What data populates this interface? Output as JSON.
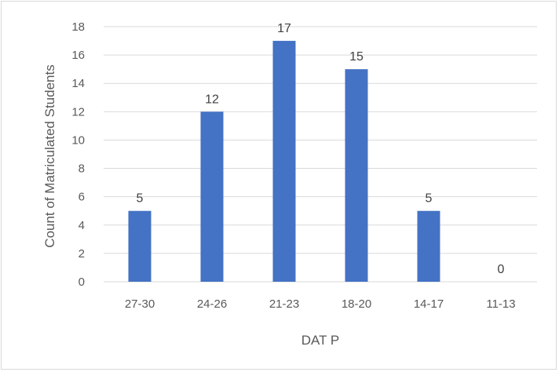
{
  "chart_data": {
    "type": "bar",
    "title": "",
    "xlabel": "DAT P",
    "ylabel": "Count of Matriculated Students",
    "categories": [
      "27-30",
      "24-26",
      "21-23",
      "18-20",
      "14-17",
      "11-13"
    ],
    "values": [
      5,
      12,
      17,
      15,
      5,
      0
    ],
    "data_labels": [
      "5",
      "12",
      "17",
      "15",
      "5",
      "0"
    ],
    "ylim": [
      0,
      18
    ],
    "yticks": [
      0,
      2,
      4,
      6,
      8,
      10,
      12,
      14,
      16,
      18
    ],
    "ytick_labels": [
      "0",
      "2",
      "4",
      "6",
      "8",
      "10",
      "12",
      "14",
      "16",
      "18"
    ],
    "grid": true,
    "legend": "none",
    "bar_color": "#4472c4",
    "gridline_color": "#d9d9d9"
  }
}
